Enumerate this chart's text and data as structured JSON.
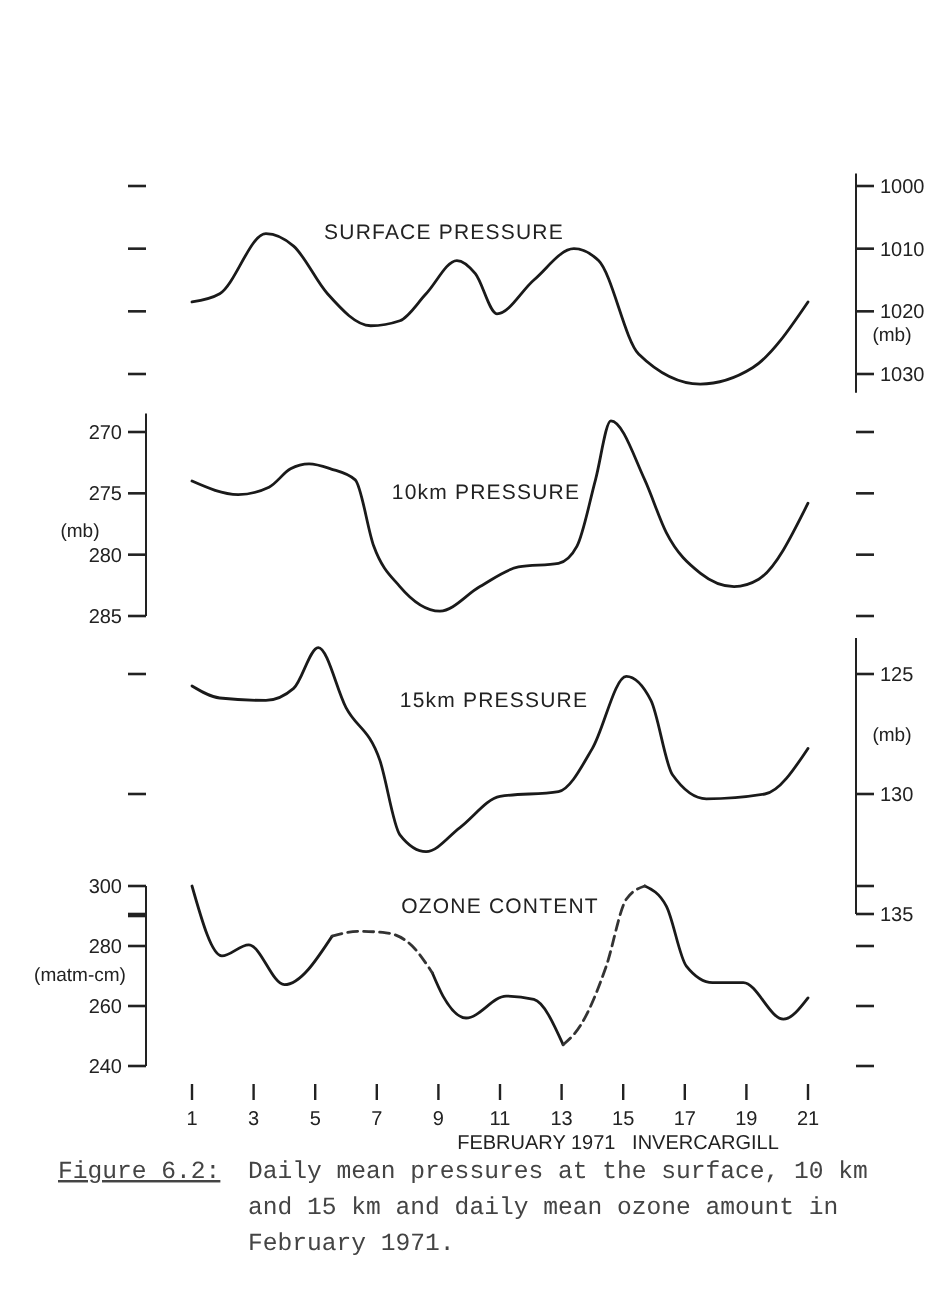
{
  "chart_data": [
    {
      "type": "line",
      "title": "SURFACE PRESSURE",
      "ylabel": "(mb)",
      "xlim": [
        1,
        21
      ],
      "tick_labels": "y",
      "ylim": [
        1033,
        998
      ],
      "yticks": [
        1000,
        1010,
        1020,
        1030
      ],
      "series": [
        {
          "color": "#1a1a1a",
          "line_style": "solid",
          "x": [
            1,
            1.9,
            3.4,
            4.3,
            5.4,
            6.8,
            7.75,
            8.6,
            9.6,
            10.2,
            10.9,
            12.1,
            13.4,
            14.2,
            15.5,
            17.5,
            19.2,
            21
          ],
          "values": [
            1018.5,
            1017.2,
            1007.6,
            1009.6,
            1017.2,
            1022.3,
            1021.5,
            1017.2,
            1011.9,
            1014,
            1020.4,
            1015,
            1010,
            1011.9,
            1026.8,
            1031.6,
            1029,
            1018.5
          ]
        }
      ]
    },
    {
      "type": "line",
      "title": "10km PRESSURE",
      "ylabel": "(mb)",
      "xlim": [
        1,
        21
      ],
      "tick_labels": "y",
      "ylim": [
        285,
        268.5
      ],
      "yticks": [
        270,
        275,
        280,
        285
      ],
      "series": [
        {
          "color": "#1a1a1a",
          "line_style": "solid",
          "x": [
            1,
            2.5,
            3.5,
            4.2,
            4.8,
            5.5,
            6.3,
            6.9,
            7.75,
            9.05,
            10.35,
            11.6,
            12.9,
            13.5,
            14.1,
            14.6,
            15.7,
            16.4,
            17.5,
            18.6,
            19.4,
            21
          ],
          "values": [
            274,
            275.1,
            274.5,
            273,
            272.6,
            273,
            273.9,
            279.3,
            282.6,
            284.6,
            282.6,
            281,
            280.7,
            279.3,
            273.9,
            269.1,
            273.9,
            278.2,
            281.5,
            282.6,
            282,
            275.8
          ]
        }
      ]
    },
    {
      "type": "line",
      "title": "15km PRESSURE",
      "ylabel": "(mb)",
      "xlim": [
        1,
        21
      ],
      "tick_labels": "y",
      "ylim": [
        135,
        123.5
      ],
      "yticks": [
        125,
        130,
        135
      ],
      "series": [
        {
          "color": "#1a1a1a",
          "line_style": "solid",
          "x": [
            1,
            1.9,
            3.4,
            4.3,
            5.1,
            6,
            7.1,
            7.75,
            8.6,
            9.7,
            11,
            12.9,
            14,
            15.1,
            15.9,
            16.6,
            17.7,
            19.6,
            21
          ],
          "values": [
            125.5,
            126,
            126.1,
            125.6,
            123.9,
            126.4,
            128.6,
            131.7,
            132.4,
            131.4,
            130.1,
            129.9,
            128.1,
            125.1,
            126.1,
            129.2,
            130.2,
            130,
            128.1
          ]
        }
      ]
    },
    {
      "type": "line",
      "title": "OZONE CONTENT",
      "ylabel": "(matm-cm)",
      "xlabel": "FEBRUARY 1971   INVERCARGILL",
      "xlim": [
        1,
        21
      ],
      "xticks": [
        1,
        3,
        5,
        7,
        9,
        11,
        13,
        15,
        17,
        19,
        21
      ],
      "ylim": [
        240,
        300
      ],
      "yticks": [
        300,
        {
          "value": 290,
          "label": null
        },
        280,
        260,
        240
      ],
      "annotations": [
        "Figure 6.2:",
        "Daily mean pressures at the surface, 10 km and 15 km and daily mean ozone amount in February 1971."
      ],
      "series": [
        {
          "color": "#1a1a1a",
          "line_style": "solid",
          "x": [
            1,
            1.97,
            2.84,
            4,
            5.55,
            7,
            8.8,
            9.15,
            9.9,
            11.2,
            12.1,
            13.05,
            14,
            15.7,
            16.4,
            17.05,
            17.9,
            18.9,
            20.2,
            21
          ],
          "values": [
            300,
            276.7,
            280.4,
            267.1,
            283.3,
            null,
            271.1,
            263.3,
            256,
            263.3,
            262.2,
            247.1,
            null,
            300,
            293.3,
            273.3,
            267.8,
            267.8,
            255.6,
            262.7
          ]
        },
        {
          "color": "#333333",
          "line_style": "dashed",
          "x": [
            5.55,
            6.4,
            7.3,
            8.15,
            8.8,
            11,
            13.05,
            13.6,
            14.45,
            15.1,
            15.7
          ],
          "values": [
            283.3,
            284.9,
            284.4,
            280,
            271.1,
            null,
            247.1,
            253.3,
            273.3,
            295.6,
            300
          ]
        }
      ]
    }
  ]
}
